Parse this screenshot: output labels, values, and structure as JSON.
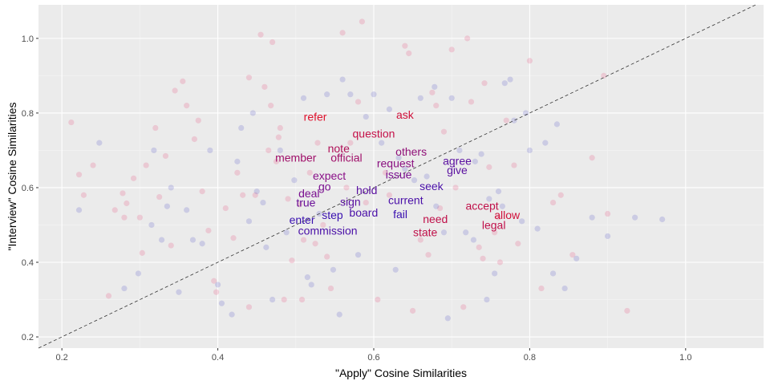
{
  "chart_data": {
    "type": "scatter",
    "xlabel": "\"Apply\" Cosine Similarities",
    "ylabel": "\"Interview\" Cosine Similarities",
    "xlim": [
      0.17,
      1.1
    ],
    "ylim": [
      0.17,
      1.09
    ],
    "xticks": [
      {
        "value": 0.2,
        "label": "0.2"
      },
      {
        "value": 0.4,
        "label": "0.4"
      },
      {
        "value": 0.6,
        "label": "0.6"
      },
      {
        "value": 0.8,
        "label": "0.8"
      },
      {
        "value": 1.0,
        "label": "1.0"
      }
    ],
    "yticks": [
      {
        "value": 0.2,
        "label": "0.2"
      },
      {
        "value": 0.4,
        "label": "0.4"
      },
      {
        "value": 0.6,
        "label": "0.6"
      },
      {
        "value": 0.8,
        "label": "0.8"
      },
      {
        "value": 1.0,
        "label": "1.0"
      }
    ],
    "grid": true,
    "reference_line": {
      "type": "y=x",
      "style": "dashed",
      "color": "#333333"
    },
    "colors": {
      "panel": "#EBEBEB",
      "grid_major": "#FFFFFF",
      "grid_minor": "#F5F5F5",
      "pink": "#E75480",
      "blue": "#5B5BC8"
    },
    "labeled_words": [
      {
        "label": "refer",
        "x": 0.525,
        "y": 0.79,
        "color": "#E0102C"
      },
      {
        "label": "ask",
        "x": 0.64,
        "y": 0.795,
        "color": "#D0103A"
      },
      {
        "label": "question",
        "x": 0.6,
        "y": 0.745,
        "color": "#C41048"
      },
      {
        "label": "note",
        "x": 0.555,
        "y": 0.705,
        "color": "#B01058"
      },
      {
        "label": "member",
        "x": 0.5,
        "y": 0.68,
        "color": "#A0106A"
      },
      {
        "label": "official",
        "x": 0.565,
        "y": 0.68,
        "color": "#A0106A"
      },
      {
        "label": "others",
        "x": 0.648,
        "y": 0.697,
        "color": "#901078"
      },
      {
        "label": "request",
        "x": 0.628,
        "y": 0.666,
        "color": "#8A1080"
      },
      {
        "label": "agree",
        "x": 0.707,
        "y": 0.672,
        "color": "#5A10A0"
      },
      {
        "label": "give",
        "x": 0.707,
        "y": 0.647,
        "color": "#5A10A0"
      },
      {
        "label": "expect",
        "x": 0.543,
        "y": 0.632,
        "color": "#8A1088"
      },
      {
        "label": "issue",
        "x": 0.632,
        "y": 0.635,
        "color": "#7A1090"
      },
      {
        "label": "go",
        "x": 0.537,
        "y": 0.603,
        "color": "#7A1090"
      },
      {
        "label": "seek",
        "x": 0.674,
        "y": 0.604,
        "color": "#4A10A8"
      },
      {
        "label": "deal",
        "x": 0.517,
        "y": 0.585,
        "color": "#7A1090"
      },
      {
        "label": "hold",
        "x": 0.591,
        "y": 0.593,
        "color": "#5A10A0"
      },
      {
        "label": "true",
        "x": 0.513,
        "y": 0.56,
        "color": "#6A1098"
      },
      {
        "label": "sign",
        "x": 0.57,
        "y": 0.562,
        "color": "#5A10A0"
      },
      {
        "label": "current",
        "x": 0.641,
        "y": 0.567,
        "color": "#4A10A8"
      },
      {
        "label": "accept",
        "x": 0.739,
        "y": 0.552,
        "color": "#C0104A"
      },
      {
        "label": "board",
        "x": 0.587,
        "y": 0.533,
        "color": "#4A10A8"
      },
      {
        "label": "step",
        "x": 0.547,
        "y": 0.527,
        "color": "#3A10B0"
      },
      {
        "label": "fail",
        "x": 0.634,
        "y": 0.529,
        "color": "#3A10B0"
      },
      {
        "label": "allow",
        "x": 0.771,
        "y": 0.527,
        "color": "#D0103A"
      },
      {
        "label": "enter",
        "x": 0.508,
        "y": 0.514,
        "color": "#3A10B0"
      },
      {
        "label": "need",
        "x": 0.679,
        "y": 0.516,
        "color": "#C0104A"
      },
      {
        "label": "legal",
        "x": 0.754,
        "y": 0.5,
        "color": "#C0104A"
      },
      {
        "label": "commission",
        "x": 0.541,
        "y": 0.485,
        "color": "#4A10A8"
      },
      {
        "label": "state",
        "x": 0.666,
        "y": 0.481,
        "color": "#C0104A"
      }
    ],
    "points_pink": [
      [
        0.212,
        0.775
      ],
      [
        0.222,
        0.635
      ],
      [
        0.228,
        0.58
      ],
      [
        0.24,
        0.66
      ],
      [
        0.26,
        0.31
      ],
      [
        0.268,
        0.54
      ],
      [
        0.278,
        0.585
      ],
      [
        0.28,
        0.52
      ],
      [
        0.283,
        0.558
      ],
      [
        0.292,
        0.625
      ],
      [
        0.3,
        0.52
      ],
      [
        0.303,
        0.425
      ],
      [
        0.308,
        0.66
      ],
      [
        0.32,
        0.76
      ],
      [
        0.325,
        0.575
      ],
      [
        0.333,
        0.685
      ],
      [
        0.34,
        0.445
      ],
      [
        0.345,
        0.86
      ],
      [
        0.355,
        0.885
      ],
      [
        0.36,
        0.82
      ],
      [
        0.37,
        0.73
      ],
      [
        0.375,
        0.78
      ],
      [
        0.38,
        0.59
      ],
      [
        0.388,
        0.485
      ],
      [
        0.395,
        0.35
      ],
      [
        0.398,
        0.32
      ],
      [
        0.41,
        0.545
      ],
      [
        0.42,
        0.465
      ],
      [
        0.425,
        0.64
      ],
      [
        0.432,
        0.58
      ],
      [
        0.44,
        0.28
      ],
      [
        0.44,
        0.895
      ],
      [
        0.448,
        0.58
      ],
      [
        0.455,
        1.01
      ],
      [
        0.46,
        0.87
      ],
      [
        0.465,
        0.7
      ],
      [
        0.468,
        0.82
      ],
      [
        0.47,
        0.99
      ],
      [
        0.475,
        0.67
      ],
      [
        0.478,
        0.735
      ],
      [
        0.48,
        0.76
      ],
      [
        0.485,
        0.3
      ],
      [
        0.49,
        0.57
      ],
      [
        0.495,
        0.405
      ],
      [
        0.505,
        0.555
      ],
      [
        0.508,
        0.3
      ],
      [
        0.51,
        0.46
      ],
      [
        0.518,
        0.64
      ],
      [
        0.525,
        0.45
      ],
      [
        0.528,
        0.72
      ],
      [
        0.535,
        0.5
      ],
      [
        0.54,
        0.415
      ],
      [
        0.545,
        0.33
      ],
      [
        0.56,
        1.015
      ],
      [
        0.565,
        0.6
      ],
      [
        0.57,
        0.72
      ],
      [
        0.58,
        0.83
      ],
      [
        0.585,
        1.045
      ],
      [
        0.59,
        0.56
      ],
      [
        0.605,
        0.3
      ],
      [
        0.615,
        0.64
      ],
      [
        0.62,
        0.58
      ],
      [
        0.64,
        0.98
      ],
      [
        0.645,
        0.96
      ],
      [
        0.65,
        0.27
      ],
      [
        0.66,
        0.46
      ],
      [
        0.67,
        0.42
      ],
      [
        0.675,
        0.855
      ],
      [
        0.68,
        0.82
      ],
      [
        0.685,
        0.545
      ],
      [
        0.69,
        0.75
      ],
      [
        0.7,
        0.97
      ],
      [
        0.705,
        0.6
      ],
      [
        0.715,
        0.28
      ],
      [
        0.72,
        1.0
      ],
      [
        0.725,
        0.83
      ],
      [
        0.735,
        0.44
      ],
      [
        0.74,
        0.41
      ],
      [
        0.742,
        0.88
      ],
      [
        0.748,
        0.655
      ],
      [
        0.755,
        0.48
      ],
      [
        0.76,
        0.52
      ],
      [
        0.762,
        0.4
      ],
      [
        0.77,
        0.78
      ],
      [
        0.78,
        0.66
      ],
      [
        0.785,
        0.45
      ],
      [
        0.8,
        0.94
      ],
      [
        0.815,
        0.33
      ],
      [
        0.83,
        0.56
      ],
      [
        0.84,
        0.58
      ],
      [
        0.855,
        0.42
      ],
      [
        0.88,
        0.68
      ],
      [
        0.895,
        0.9
      ],
      [
        0.9,
        0.53
      ],
      [
        0.925,
        0.27
      ]
    ],
    "points_blue": [
      [
        0.222,
        0.54
      ],
      [
        0.248,
        0.72
      ],
      [
        0.28,
        0.33
      ],
      [
        0.298,
        0.37
      ],
      [
        0.315,
        0.5
      ],
      [
        0.318,
        0.7
      ],
      [
        0.328,
        0.46
      ],
      [
        0.335,
        0.55
      ],
      [
        0.34,
        0.6
      ],
      [
        0.35,
        0.32
      ],
      [
        0.36,
        0.54
      ],
      [
        0.368,
        0.46
      ],
      [
        0.38,
        0.45
      ],
      [
        0.39,
        0.7
      ],
      [
        0.4,
        0.34
      ],
      [
        0.405,
        0.29
      ],
      [
        0.418,
        0.26
      ],
      [
        0.425,
        0.67
      ],
      [
        0.43,
        0.76
      ],
      [
        0.44,
        0.51
      ],
      [
        0.445,
        0.8
      ],
      [
        0.45,
        0.59
      ],
      [
        0.458,
        0.56
      ],
      [
        0.462,
        0.44
      ],
      [
        0.47,
        0.3
      ],
      [
        0.48,
        0.7
      ],
      [
        0.488,
        0.48
      ],
      [
        0.498,
        0.62
      ],
      [
        0.51,
        0.84
      ],
      [
        0.515,
        0.36
      ],
      [
        0.52,
        0.34
      ],
      [
        0.53,
        0.53
      ],
      [
        0.54,
        0.85
      ],
      [
        0.548,
        0.38
      ],
      [
        0.556,
        0.26
      ],
      [
        0.56,
        0.89
      ],
      [
        0.57,
        0.85
      ],
      [
        0.58,
        0.42
      ],
      [
        0.59,
        0.79
      ],
      [
        0.6,
        0.85
      ],
      [
        0.61,
        0.72
      ],
      [
        0.62,
        0.81
      ],
      [
        0.628,
        0.38
      ],
      [
        0.632,
        0.68
      ],
      [
        0.64,
        0.65
      ],
      [
        0.652,
        0.62
      ],
      [
        0.66,
        0.84
      ],
      [
        0.668,
        0.63
      ],
      [
        0.678,
        0.87
      ],
      [
        0.68,
        0.55
      ],
      [
        0.69,
        0.48
      ],
      [
        0.695,
        0.25
      ],
      [
        0.7,
        0.84
      ],
      [
        0.71,
        0.7
      ],
      [
        0.718,
        0.48
      ],
      [
        0.728,
        0.46
      ],
      [
        0.73,
        0.67
      ],
      [
        0.738,
        0.69
      ],
      [
        0.745,
        0.3
      ],
      [
        0.748,
        0.57
      ],
      [
        0.755,
        0.37
      ],
      [
        0.76,
        0.59
      ],
      [
        0.765,
        0.55
      ],
      [
        0.768,
        0.88
      ],
      [
        0.775,
        0.89
      ],
      [
        0.78,
        0.78
      ],
      [
        0.79,
        0.51
      ],
      [
        0.795,
        0.8
      ],
      [
        0.8,
        0.7
      ],
      [
        0.81,
        0.49
      ],
      [
        0.82,
        0.72
      ],
      [
        0.83,
        0.37
      ],
      [
        0.835,
        0.77
      ],
      [
        0.845,
        0.33
      ],
      [
        0.86,
        0.41
      ],
      [
        0.88,
        0.52
      ],
      [
        0.9,
        0.47
      ],
      [
        0.935,
        0.52
      ],
      [
        0.97,
        0.515
      ]
    ]
  }
}
